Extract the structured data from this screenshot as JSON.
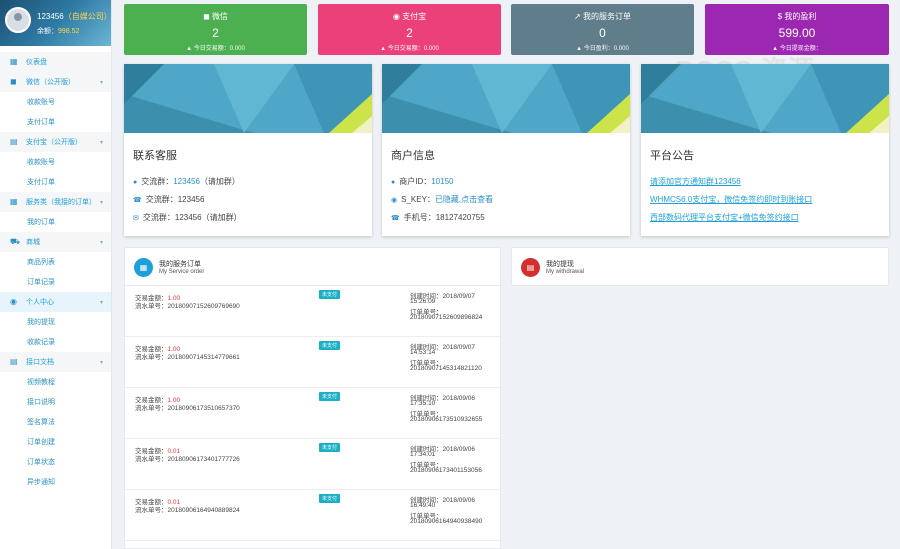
{
  "sidebar": {
    "username": "123456",
    "user_badge": "（自媒公司）",
    "balance_label": "余额：",
    "balance_value": "998.52",
    "items": [
      {
        "label": "仪表盘",
        "type": "section",
        "icon": "dashboard-icon"
      },
      {
        "label": "微信（公开版）",
        "type": "section",
        "icon": "wechat-icon"
      },
      {
        "label": "收款账号",
        "type": "sub"
      },
      {
        "label": "支付订单",
        "type": "sub"
      },
      {
        "label": "支付宝（公开版）",
        "type": "section",
        "icon": "alipay-icon"
      },
      {
        "label": "收款账号",
        "type": "sub"
      },
      {
        "label": "支付订单",
        "type": "sub"
      },
      {
        "label": "服务类（我接的订单）",
        "type": "section",
        "icon": "service-icon"
      },
      {
        "label": "我的订单",
        "type": "sub"
      },
      {
        "label": "商城",
        "type": "section",
        "icon": "cart-icon"
      },
      {
        "label": "商品列表",
        "type": "sub"
      },
      {
        "label": "订单记录",
        "type": "sub"
      },
      {
        "label": "个人中心",
        "type": "section-active",
        "icon": "user-icon"
      },
      {
        "label": "我的提现",
        "type": "sub"
      },
      {
        "label": "收款记录",
        "type": "sub"
      },
      {
        "label": "接口文档",
        "type": "section",
        "icon": "doc-icon"
      },
      {
        "label": "视频教程",
        "type": "sub"
      },
      {
        "label": "接口说明",
        "type": "sub"
      },
      {
        "label": "签名算法",
        "type": "sub"
      },
      {
        "label": "订单创建",
        "type": "sub"
      },
      {
        "label": "订单状态",
        "type": "sub"
      },
      {
        "label": "异步通知",
        "type": "sub"
      }
    ]
  },
  "stats": [
    {
      "label": "微信",
      "value": "2",
      "sub": "今日交易额：0.000",
      "color": "#4caf50",
      "icon": "wechat-icon"
    },
    {
      "label": "支付宝",
      "value": "2",
      "sub": "今日交易额：0.000",
      "color": "#ec407a",
      "icon": "alipay-icon"
    },
    {
      "label": "我的服务订单",
      "value": "0",
      "sub": "今日盈利：0.000",
      "color": "#607d8b",
      "icon": "trend-icon"
    },
    {
      "label": "我的盈利",
      "value": "599.00",
      "sub": "今日提现金额：",
      "color": "#9c27b0",
      "icon": "dollar-icon"
    }
  ],
  "cards": {
    "contact": {
      "title": "联系客服",
      "rows": [
        {
          "icon": "user-icon",
          "label": "交流群：",
          "value": "123456",
          "extra": "（请加群）"
        },
        {
          "icon": "phone-icon",
          "label": "交流群：",
          "value": "123456",
          "extra": ""
        },
        {
          "icon": "mail-icon",
          "label": "交流群：",
          "value": "123456",
          "extra": "（请加群）"
        }
      ]
    },
    "merchant": {
      "title": "商户信息",
      "rows": [
        {
          "icon": "user-icon",
          "label": "商户ID：",
          "value": "10150"
        },
        {
          "icon": "eye-icon",
          "label": "S_KEY：",
          "value": "已隐藏,点击查看"
        },
        {
          "icon": "phone-icon",
          "label": "手机号：",
          "value": "18127420755"
        }
      ]
    },
    "notice": {
      "title": "平台公告",
      "links": [
        "请添加官方通知群123456",
        "WHMCS6.0支付宝，微信免签约即时到账接口",
        "西部数码代理平台支付宝+微信免签约接口"
      ]
    }
  },
  "orders_panel": {
    "title": "我的服务订单",
    "subtitle": "My Service order",
    "amount_label": "交易金额：",
    "serial_label": "流水单号：",
    "created_label": "创建时间：",
    "order_no_label": "订单单号：",
    "orders": [
      {
        "amount": "1.00",
        "serial": "20180907152609769690",
        "status": "未支付",
        "created": "2018/09/07",
        "time": "15:26:09",
        "order_no": "20180907152609896824"
      },
      {
        "amount": "1.00",
        "serial": "20180907145314779661",
        "status": "未支付",
        "created": "2018/09/07",
        "time": "14:53:14",
        "order_no": "20180907145314821120"
      },
      {
        "amount": "1.00",
        "serial": "20180906173510657370",
        "status": "未支付",
        "created": "2018/09/06",
        "time": "17:35:10",
        "order_no": "20180906173510932655"
      },
      {
        "amount": "0.01",
        "serial": "20180906173401777726",
        "status": "未支付",
        "created": "2018/09/06",
        "time": "17:34:01",
        "order_no": "20180906173401153056"
      },
      {
        "amount": "0.01",
        "serial": "20180906164940889824",
        "status": "未支付",
        "created": "2018/09/06",
        "time": "16:49:40",
        "order_no": "20180906164940938490"
      }
    ]
  },
  "withdraw_panel": {
    "title": "我的提现",
    "subtitle": "My withdrawal"
  },
  "watermark": "BOSS 资源"
}
